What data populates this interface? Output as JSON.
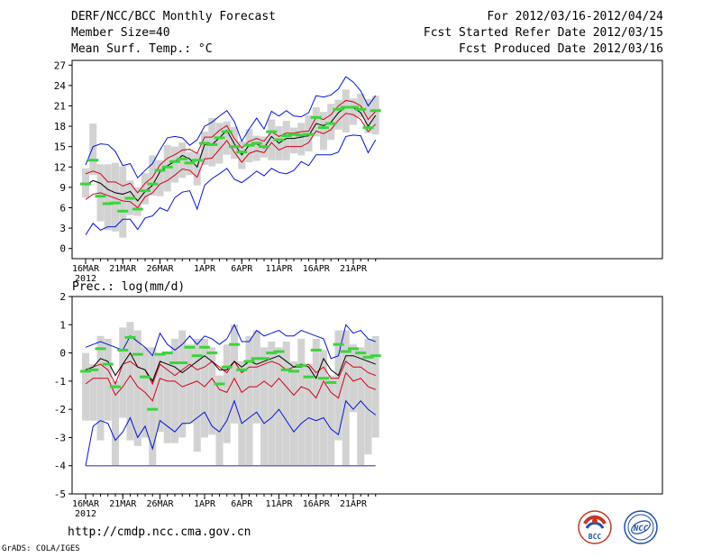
{
  "header": {
    "title": "DERF/NCC/BCC Monthly Forecast",
    "member_size": "Member Size=40",
    "variable": "Mean Surf. Temp.: °C",
    "period": "For 2012/03/16-2012/04/24",
    "started": "Fcst Started Refer Date 2012/03/15",
    "produced": "Fcst Produced Date 2012/03/16"
  },
  "footer": {
    "url": "http://cmdp.ncc.cma.gov.cn",
    "credit": "GrADS: COLA/IGES",
    "logo_left_text": "BCC",
    "logo_right_text": "NCC"
  },
  "colors": {
    "box": "#d2d2d2",
    "mean": "#3ad43a",
    "median": "#000000",
    "quartile": "#d0021b",
    "extreme": "#0015d6",
    "floor": "#6b6bd8"
  },
  "chart_data": [
    {
      "type": "box-ensemble",
      "title": "Mean Surf. Temp.: °C",
      "x_labels": [
        "16MAR",
        "21MAR",
        "26MAR",
        "1APR",
        "6APR",
        "11APR",
        "16APR",
        "21APR"
      ],
      "x_label_days": [
        0,
        5,
        10,
        16,
        21,
        26,
        31,
        36
      ],
      "year_label": "2012",
      "ylim": [
        -1.5,
        27.7
      ],
      "yticks": [
        0,
        3,
        6,
        9,
        12,
        15,
        18,
        21,
        24,
        27
      ],
      "days": [
        0,
        1,
        2,
        3,
        4,
        5,
        6,
        7,
        8,
        9,
        10,
        11,
        12,
        13,
        14,
        15,
        16,
        17,
        18,
        19,
        20,
        21,
        22,
        23,
        24,
        25,
        26,
        27,
        28,
        29,
        30,
        31,
        32,
        33,
        34,
        35,
        36,
        37,
        38,
        39
      ],
      "max": [
        12.3,
        15.0,
        15.4,
        15.3,
        14.3,
        12.2,
        12.5,
        10.4,
        11.5,
        12.5,
        14.5,
        16.3,
        16.5,
        16.3,
        15.2,
        16.0,
        18.0,
        18.6,
        19.5,
        20.3,
        18.7,
        15.8,
        17.6,
        19.2,
        17.6,
        20.2,
        19.5,
        20.3,
        19.5,
        19.4,
        20.0,
        22.5,
        22.3,
        22.6,
        23.5,
        25.3,
        24.5,
        23.2,
        21.0,
        22.5
      ],
      "q75": [
        11.0,
        11.4,
        11.0,
        9.8,
        9.8,
        9.2,
        9.6,
        8.2,
        9.6,
        10.5,
        12.3,
        13.3,
        13.8,
        14.5,
        14.6,
        14.0,
        16.4,
        16.4,
        17.4,
        18.1,
        16.2,
        14.8,
        15.8,
        16.2,
        15.8,
        17.2,
        16.5,
        17.0,
        17.0,
        17.2,
        17.3,
        19.3,
        19.0,
        19.7,
        21.0,
        21.8,
        21.6,
        21.0,
        19.0,
        20.2
      ],
      "median": [
        9.3,
        10.0,
        9.6,
        8.7,
        8.2,
        8.0,
        8.4,
        7.0,
        8.4,
        9.3,
        11.3,
        12.2,
        12.8,
        13.7,
        13.2,
        12.0,
        15.3,
        15.3,
        16.3,
        17.4,
        15.4,
        13.8,
        15.2,
        15.4,
        14.8,
        16.5,
        15.5,
        16.2,
        16.2,
        16.4,
        16.6,
        18.4,
        18.1,
        18.6,
        20.0,
        20.8,
        20.7,
        20.0,
        18.0,
        19.6
      ],
      "q25": [
        7.2,
        8.0,
        8.2,
        7.8,
        7.4,
        7.0,
        6.9,
        6.0,
        7.6,
        8.2,
        9.5,
        10.0,
        10.8,
        11.7,
        11.5,
        10.5,
        13.2,
        13.3,
        14.6,
        15.9,
        14.2,
        12.7,
        14.0,
        14.4,
        14.1,
        15.6,
        14.5,
        15.0,
        15.0,
        15.0,
        15.6,
        17.3,
        16.9,
        17.5,
        18.9,
        19.9,
        19.7,
        19.0,
        17.2,
        18.3
      ],
      "min": [
        2.0,
        3.7,
        2.7,
        3.2,
        3.2,
        4.3,
        4.3,
        2.8,
        4.5,
        4.8,
        6.0,
        5.5,
        7.5,
        8.3,
        8.5,
        5.8,
        9.3,
        10.3,
        11.0,
        11.8,
        10.2,
        9.7,
        10.5,
        11.4,
        10.7,
        11.8,
        11.2,
        11.0,
        11.5,
        12.8,
        12.2,
        13.8,
        13.8,
        13.8,
        14.2,
        16.5,
        16.7,
        16.6,
        14.1,
        16.0
      ],
      "mean": [
        9.5,
        13.0,
        7.7,
        6.6,
        6.7,
        5.5,
        7.4,
        5.8,
        8.5,
        9.5,
        11.5,
        12.0,
        12.8,
        13.2,
        12.6,
        13.0,
        15.5,
        15.3,
        16.3,
        17.2,
        15.0,
        14.2,
        15.2,
        15.5,
        15.0,
        17.2,
        16.0,
        16.6,
        16.8,
        16.7,
        16.8,
        19.3,
        17.8,
        18.4,
        20.5,
        20.8,
        20.8,
        20.5,
        17.8,
        20.3
      ],
      "box_top": [
        11.8,
        18.4,
        12.4,
        12.4,
        12.6,
        12.1,
        10.0,
        9.0,
        11.1,
        13.7,
        13.0,
        15.2,
        15.0,
        15.6,
        14.2,
        14.1,
        17.2,
        19.2,
        18.5,
        18.7,
        17.9,
        15.8,
        17.6,
        16.6,
        16.5,
        19.0,
        18.0,
        18.8,
        17.8,
        18.5,
        19.6,
        20.8,
        20.1,
        21.3,
        21.9,
        23.4,
        22.1,
        22.8,
        22.0,
        22.5
      ],
      "box_bot": [
        7.5,
        10.8,
        4.0,
        2.7,
        2.5,
        1.6,
        4.9,
        4.8,
        6.5,
        7.8,
        7.7,
        8.4,
        9.7,
        10.4,
        10.8,
        9.3,
        12.3,
        12.1,
        12.5,
        13.8,
        13.2,
        11.7,
        12.7,
        12.9,
        13.4,
        13.0,
        13.0,
        13.0,
        14.0,
        13.7,
        14.3,
        16.5,
        14.5,
        16.0,
        17.5,
        17.1,
        18.2,
        19.3,
        17.0,
        16.8
      ]
    },
    {
      "type": "box-ensemble",
      "title": "Prec.: log(mm/d)",
      "x_labels": [
        "16MAR",
        "21MAR",
        "26MAR",
        "1APR",
        "6APR",
        "11APR",
        "16APR",
        "21APR"
      ],
      "x_label_days": [
        0,
        5,
        10,
        16,
        21,
        26,
        31,
        36
      ],
      "year_label": "2012",
      "ylim": [
        -5,
        2
      ],
      "yticks": [
        -5,
        -4,
        -3,
        -2,
        -1,
        0,
        1,
        2
      ],
      "floor": -4,
      "days": [
        0,
        1,
        2,
        3,
        4,
        5,
        6,
        7,
        8,
        9,
        10,
        11,
        12,
        13,
        14,
        15,
        16,
        17,
        18,
        19,
        20,
        21,
        22,
        23,
        24,
        25,
        26,
        27,
        28,
        29,
        30,
        31,
        32,
        33,
        34,
        35,
        36,
        37,
        38,
        39
      ],
      "max": [
        0.2,
        0.3,
        0.4,
        0.3,
        0.2,
        0.1,
        0.6,
        0.4,
        0.2,
        -0.1,
        0.7,
        0.3,
        0.1,
        0.3,
        0.6,
        0.3,
        0.6,
        0.5,
        0.3,
        0.5,
        1.0,
        0.4,
        0.4,
        0.8,
        0.6,
        0.7,
        0.8,
        0.6,
        0.6,
        0.8,
        0.7,
        0.6,
        0.5,
        -0.2,
        -0.1,
        1.0,
        0.7,
        0.8,
        0.5,
        0.4
      ],
      "q75": [
        -0.6,
        -0.5,
        -0.4,
        -0.6,
        -1.1,
        -0.4,
        -0.3,
        -0.5,
        -0.6,
        -1.1,
        -0.4,
        -0.6,
        -0.8,
        -0.6,
        -0.4,
        -0.6,
        -0.5,
        -0.3,
        -0.5,
        -0.7,
        -0.3,
        -0.7,
        -0.5,
        -0.5,
        -0.4,
        -0.3,
        -0.4,
        -0.6,
        -0.5,
        -0.5,
        -0.4,
        -0.7,
        -0.5,
        -0.9,
        -0.9,
        -0.3,
        -0.5,
        -0.5,
        -0.7,
        -0.8
      ],
      "median": [
        -0.6,
        -0.5,
        -0.2,
        -0.3,
        -0.8,
        -0.4,
        0.0,
        -0.5,
        -0.6,
        -1.0,
        -0.3,
        -0.4,
        -0.5,
        -0.7,
        -0.5,
        -0.3,
        -0.1,
        -0.3,
        -0.6,
        -0.6,
        -0.3,
        -0.5,
        -0.3,
        -0.4,
        -0.3,
        -0.2,
        -0.1,
        -0.3,
        -0.5,
        -0.4,
        -0.5,
        -0.9,
        -0.2,
        -0.6,
        -0.8,
        -0.1,
        -0.1,
        -0.2,
        -0.3,
        -0.4
      ],
      "q25": [
        -1.1,
        -0.9,
        -0.9,
        -0.9,
        -1.5,
        -1.2,
        -0.8,
        -1.2,
        -1.4,
        -1.7,
        -0.9,
        -1.0,
        -1.0,
        -1.2,
        -1.1,
        -1.0,
        -1.2,
        -0.9,
        -1.3,
        -1.4,
        -0.9,
        -1.4,
        -1.2,
        -1.2,
        -1.0,
        -1.2,
        -0.9,
        -1.2,
        -1.5,
        -1.2,
        -1.3,
        -1.6,
        -1.0,
        -1.4,
        -1.6,
        -0.7,
        -1.0,
        -0.9,
        -1.2,
        -1.3
      ],
      "min": [
        -4.0,
        -2.6,
        -2.4,
        -2.5,
        -3.1,
        -2.8,
        -2.3,
        -3.0,
        -2.6,
        -3.4,
        -2.4,
        -2.6,
        -2.8,
        -2.5,
        -2.5,
        -2.3,
        -2.1,
        -2.6,
        -2.8,
        -2.4,
        -1.7,
        -2.5,
        -2.3,
        -2.1,
        -2.5,
        -2.3,
        -2.0,
        -2.4,
        -2.8,
        -2.5,
        -2.3,
        -2.4,
        -2.3,
        -2.7,
        -2.9,
        -1.7,
        -2.0,
        -1.7,
        -2.0,
        -2.2
      ],
      "mean": [
        -0.65,
        -0.6,
        0.15,
        -0.4,
        -1.2,
        0.1,
        0.55,
        -0.05,
        -0.85,
        -2.0,
        -0.05,
        0.0,
        -0.35,
        -0.35,
        0.2,
        -0.1,
        0.2,
        0.0,
        -1.1,
        -0.5,
        0.3,
        -0.6,
        -0.3,
        -0.2,
        -0.2,
        0.0,
        0.05,
        -0.6,
        -0.65,
        -0.45,
        -0.85,
        0.1,
        -0.9,
        -1.05,
        0.3,
        0.05,
        0.15,
        0.0,
        -0.15,
        -0.1
      ],
      "box_top": [
        0.0,
        -0.4,
        0.6,
        0.5,
        -1.0,
        0.9,
        1.1,
        0.8,
        0.2,
        0.2,
        -0.1,
        0.0,
        0.5,
        0.8,
        0.3,
        0.5,
        0.5,
        0.2,
        -0.8,
        0.3,
        1.0,
        -0.3,
        0.6,
        0.8,
        0.2,
        0.4,
        0.2,
        0.4,
        -0.3,
        0.5,
        -0.4,
        0.5,
        0.1,
        -0.8,
        0.8,
        0.8,
        0.3,
        0.2,
        0.5,
        0.6
      ],
      "box_bot": [
        -2.4,
        -2.4,
        -3.1,
        -2.4,
        -4.0,
        -2.3,
        -3.1,
        -3.3,
        -3.0,
        -4.0,
        -2.8,
        -3.2,
        -3.2,
        -3.0,
        -2.5,
        -3.5,
        -3.0,
        -2.9,
        -4.0,
        -3.2,
        -2.5,
        -4.0,
        -4.0,
        -2.5,
        -4.0,
        -4.0,
        -4.0,
        -4.0,
        -4.0,
        -4.0,
        -4.0,
        -4.0,
        -4.0,
        -4.0,
        -3.1,
        -4.0,
        -2.1,
        -4.0,
        -3.6,
        -3.0
      ]
    }
  ]
}
